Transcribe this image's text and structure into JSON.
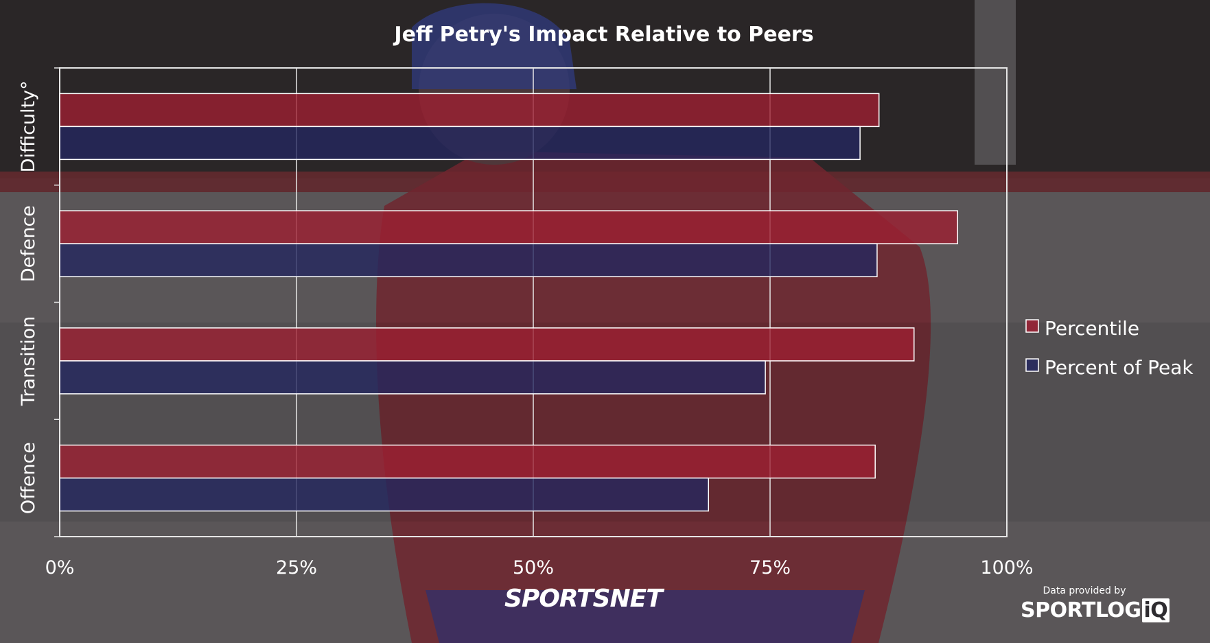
{
  "chart_data": {
    "type": "bar",
    "orientation": "horizontal",
    "title": "Jeff Petry's Impact Relative to Peers",
    "categories": [
      "Difficulty°",
      "Defence",
      "Transition",
      "Offence"
    ],
    "series": [
      {
        "name": "Percentile",
        "values": [
          86.5,
          94.8,
          90.2,
          86.1
        ]
      },
      {
        "name": "Percent of Peak",
        "values": [
          84.5,
          86.3,
          74.5,
          68.5
        ]
      }
    ],
    "xlim": [
      0,
      100
    ],
    "x_ticks": [
      "0%",
      "25%",
      "50%",
      "75%",
      "100%"
    ],
    "x_tick_values": [
      0,
      25,
      50,
      75,
      100
    ],
    "grid": true,
    "legend_position": "right",
    "colors": {
      "Percentile": "#9c1f32",
      "Percent of Peak": "#24275f"
    }
  },
  "branding": {
    "network": "SPORTSNET",
    "credit": "Data provided by",
    "provider_main": "SPORTLOG",
    "provider_suffix": "iQ"
  }
}
